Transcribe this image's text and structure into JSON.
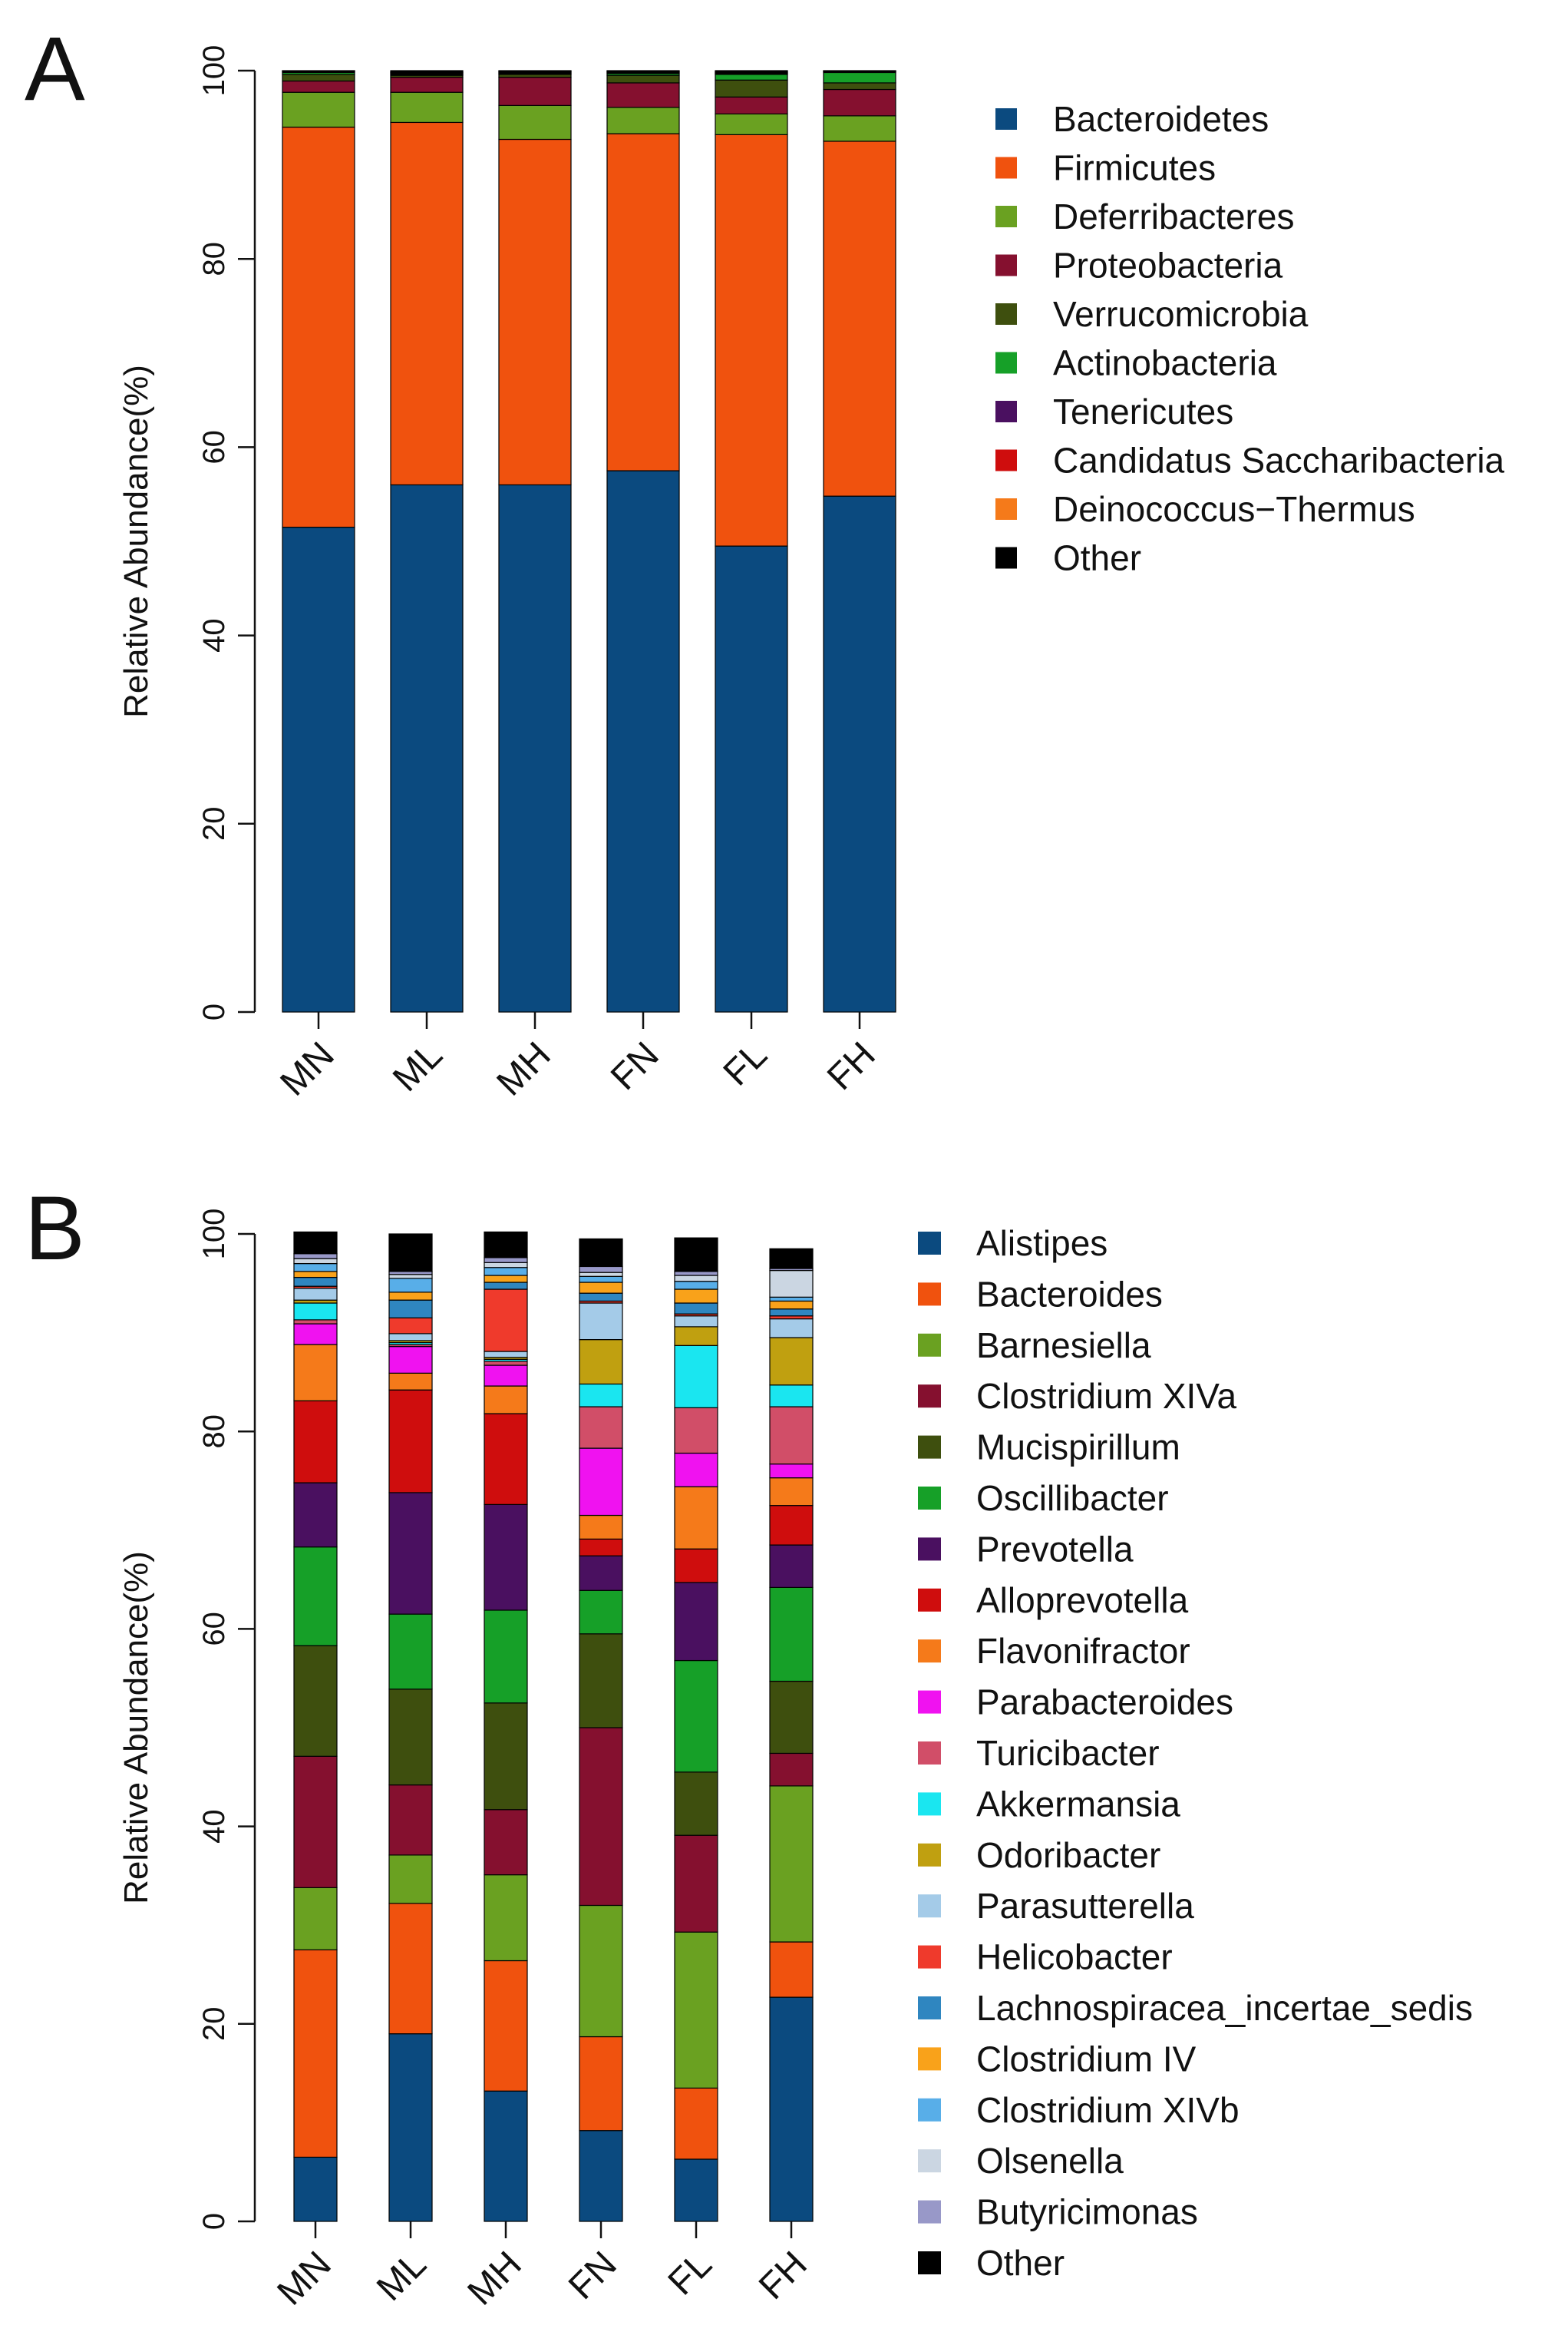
{
  "chart_data": [
    {
      "panel": "A",
      "type": "bar",
      "stacked": true,
      "ylabel": "Relative Abundance(%)",
      "ylim": [
        0,
        100
      ],
      "yticks": [
        0,
        20,
        40,
        60,
        80,
        100
      ],
      "categories": [
        "MN",
        "ML",
        "MH",
        "FN",
        "FL",
        "FH"
      ],
      "legend_position": "right",
      "series": [
        {
          "name": "Bacteroidetes",
          "color": "#0b4a7f",
          "values": [
            51.5,
            56.0,
            56.0,
            57.5,
            49.5,
            54.8
          ]
        },
        {
          "name": "Firmicutes",
          "color": "#f0520e",
          "values": [
            42.5,
            38.5,
            36.7,
            35.8,
            43.7,
            37.7
          ]
        },
        {
          "name": "Deferribacteres",
          "color": "#6aa121",
          "values": [
            3.7,
            3.2,
            3.6,
            2.8,
            2.2,
            2.7
          ]
        },
        {
          "name": "Proteobacteria",
          "color": "#85102f",
          "values": [
            1.2,
            1.6,
            3.0,
            2.6,
            1.8,
            2.8
          ]
        },
        {
          "name": "Verrucomicrobia",
          "color": "#3e4f0e",
          "values": [
            0.7,
            0.2,
            0.3,
            0.8,
            1.8,
            0.7
          ]
        },
        {
          "name": "Actinobacteria",
          "color": "#16a028",
          "values": [
            0.2,
            0.1,
            0.1,
            0.2,
            0.6,
            1.1
          ]
        },
        {
          "name": "Tenericutes",
          "color": "#4a1060",
          "values": [
            0.1,
            0.1,
            0.1,
            0.1,
            0.1,
            0.1
          ]
        },
        {
          "name": "Candidatus Saccharibacteria",
          "color": "#cf0d0d",
          "values": [
            0.05,
            0.1,
            0.1,
            0.1,
            0.1,
            0.05
          ]
        },
        {
          "name": "Deinococcus−Thermus",
          "color": "#f57a1a",
          "values": [
            0.03,
            0.05,
            0.05,
            0.05,
            0.1,
            0.02
          ]
        },
        {
          "name": "Other",
          "color": "#000000",
          "values": [
            0.02,
            0.15,
            0.05,
            0.05,
            0.1,
            0.03
          ]
        }
      ]
    },
    {
      "panel": "B",
      "type": "bar",
      "stacked": true,
      "ylabel": "Relative Abundance(%)",
      "ylim": [
        0,
        100
      ],
      "yticks": [
        0,
        20,
        40,
        60,
        80,
        100
      ],
      "categories": [
        "MN",
        "ML",
        "MH",
        "FN",
        "FL",
        "FH"
      ],
      "legend_position": "right",
      "series": [
        {
          "name": "Alistipes",
          "color": "#0b4a7f",
          "values": [
            6.5,
            19.0,
            13.2,
            9.2,
            6.3,
            22.7
          ]
        },
        {
          "name": "Bacteroides",
          "color": "#f0520e",
          "values": [
            21.0,
            13.2,
            13.2,
            9.5,
            7.2,
            5.6
          ]
        },
        {
          "name": "Barnesiella",
          "color": "#6aa121",
          "values": [
            6.3,
            4.9,
            8.7,
            13.3,
            15.8,
            15.8
          ]
        },
        {
          "name": "Clostridium XIVa",
          "color": "#85102f",
          "values": [
            13.3,
            7.1,
            6.6,
            18.0,
            9.8,
            3.3
          ]
        },
        {
          "name": "Mucispirillum",
          "color": "#3e4f0e",
          "values": [
            11.2,
            9.7,
            10.8,
            9.5,
            6.4,
            7.3
          ]
        },
        {
          "name": "Oscillibacter",
          "color": "#16a028",
          "values": [
            10.0,
            7.6,
            9.4,
            4.4,
            11.3,
            9.5
          ]
        },
        {
          "name": "Prevotella",
          "color": "#4a1060",
          "values": [
            6.5,
            12.3,
            10.7,
            3.5,
            7.9,
            4.3
          ]
        },
        {
          "name": "Alloprevotella",
          "color": "#cf0d0d",
          "values": [
            8.3,
            10.4,
            9.2,
            1.7,
            3.4,
            4.0
          ]
        },
        {
          "name": "Flavonifractor",
          "color": "#f57a1a",
          "values": [
            5.7,
            1.7,
            2.8,
            2.4,
            6.3,
            2.8
          ]
        },
        {
          "name": "Parabacteroides",
          "color": "#f012f0",
          "values": [
            2.1,
            2.7,
            2.1,
            6.8,
            3.4,
            1.4
          ]
        },
        {
          "name": "Turicibacter",
          "color": "#d14e68",
          "values": [
            0.4,
            0.2,
            0.4,
            4.2,
            4.6,
            5.8
          ]
        },
        {
          "name": "Akkermansia",
          "color": "#1ae6f0",
          "values": [
            1.7,
            0.2,
            0.2,
            2.3,
            6.3,
            2.2
          ]
        },
        {
          "name": "Odoribacter",
          "color": "#c0a010",
          "values": [
            0.3,
            0.2,
            0.2,
            4.5,
            1.9,
            4.8
          ]
        },
        {
          "name": "Parasutterella",
          "color": "#a4cbe8",
          "values": [
            1.2,
            0.7,
            0.6,
            3.7,
            1.1,
            1.9
          ]
        },
        {
          "name": "Helicobacter",
          "color": "#ef3a2c",
          "values": [
            0.2,
            1.6,
            6.3,
            0.2,
            0.2,
            0.3
          ]
        },
        {
          "name": "Lachnospiracea_incertae_sedis",
          "color": "#2f86c0",
          "values": [
            0.9,
            1.8,
            0.7,
            0.8,
            1.1,
            0.7
          ]
        },
        {
          "name": "Clostridium IV",
          "color": "#f9a21a",
          "values": [
            0.6,
            0.8,
            0.7,
            1.1,
            1.4,
            0.8
          ]
        },
        {
          "name": "Clostridium XIVb",
          "color": "#58aee8",
          "values": [
            0.8,
            1.4,
            0.8,
            0.6,
            0.8,
            0.4
          ]
        },
        {
          "name": "Olsenella",
          "color": "#cbd6e2",
          "values": [
            0.5,
            0.4,
            0.5,
            0.4,
            0.6,
            2.7
          ]
        },
        {
          "name": "Butyricimonas",
          "color": "#9898c8",
          "values": [
            0.5,
            0.3,
            0.5,
            0.6,
            0.4,
            0.2
          ]
        },
        {
          "name": "Other",
          "color": "#000000",
          "values": [
            2.2,
            3.8,
            2.6,
            2.8,
            3.4,
            2.0
          ]
        }
      ]
    }
  ]
}
